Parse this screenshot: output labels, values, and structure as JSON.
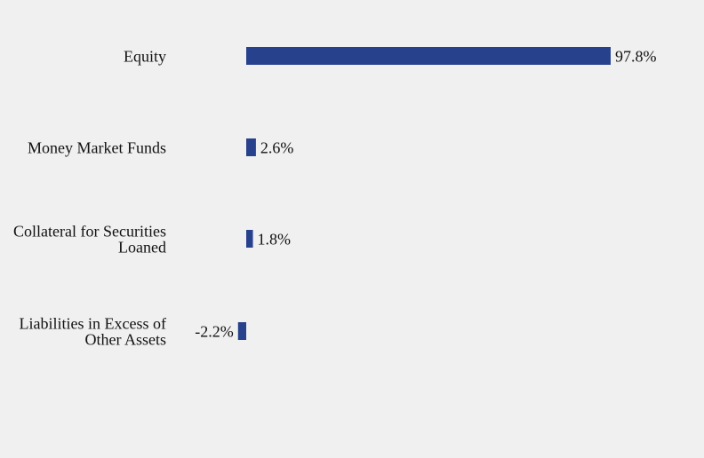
{
  "chart_data": {
    "type": "bar",
    "orientation": "horizontal",
    "categories": [
      [
        "Equity"
      ],
      [
        "Money Market Funds"
      ],
      [
        "Collateral for Securities",
        "Loaned"
      ],
      [
        "Liabilities in Excess of",
        "Other Assets"
      ]
    ],
    "values": [
      97.8,
      2.6,
      1.8,
      -2.2
    ],
    "value_labels": [
      "97.8%",
      "2.6%",
      "1.8%",
      "-2.2%"
    ],
    "unit": "%",
    "xlim": [
      -2.2,
      97.8
    ],
    "grid": false,
    "legend": "none",
    "colors": {
      "bar": "#27418c",
      "background": "#f0f0f0",
      "text": "#111111"
    }
  }
}
